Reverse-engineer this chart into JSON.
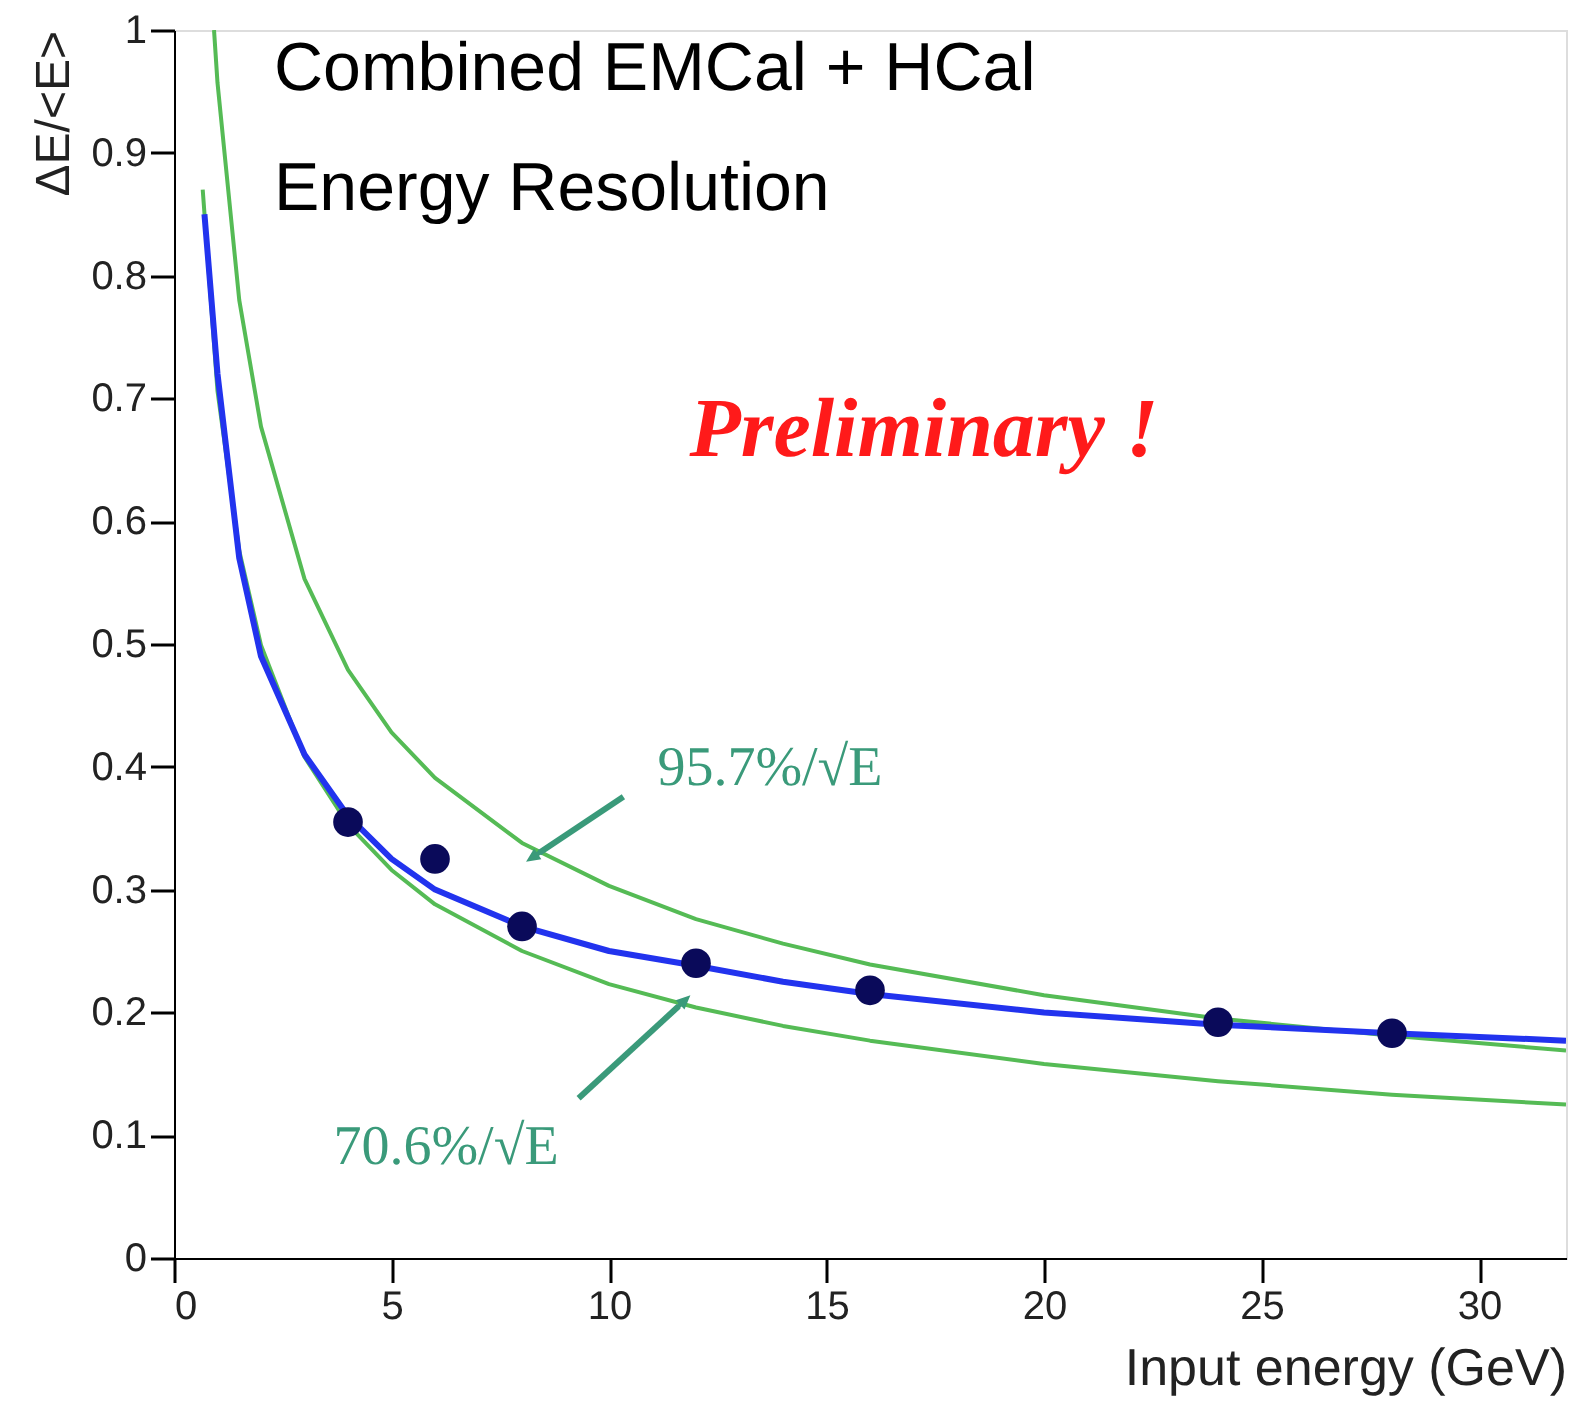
{
  "chart_data": {
    "type": "line",
    "title": "Combined EMCal + HCal\nEnergy Resolution",
    "xlabel": "Input energy (GeV)",
    "ylabel": "ΔE/<E>",
    "xlim": [
      0,
      32
    ],
    "xticks": [
      0,
      5,
      10,
      15,
      20,
      25,
      30
    ],
    "ylim": [
      0,
      1
    ],
    "yticks": [
      0,
      0.1,
      0.2,
      0.3,
      0.4,
      0.5,
      0.6,
      0.7,
      0.8,
      0.9,
      1
    ],
    "grid": false,
    "annotations": [
      "Preliminary !",
      {
        "text": "95.7%/√E",
        "x": 8.4,
        "y": 0.33
      },
      {
        "text": "70.6%/√E",
        "x": 11.6,
        "y": 0.205
      }
    ],
    "series": [
      {
        "color": "#55bb55",
        "x": [
          0.92,
          1,
          1.5,
          2,
          3,
          4,
          5,
          6,
          8,
          10,
          12,
          14,
          16,
          20,
          24,
          28,
          32
        ],
        "values": [
          1.0,
          0.957,
          0.78,
          0.677,
          0.553,
          0.479,
          0.428,
          0.391,
          0.338,
          0.303,
          0.276,
          0.256,
          0.239,
          0.214,
          0.195,
          0.181,
          0.169
        ]
      },
      {
        "color": "#55bb55",
        "x": [
          0.66,
          1,
          1.5,
          2,
          3,
          4,
          5,
          6,
          8,
          10,
          12,
          14,
          16,
          20,
          24,
          28,
          32
        ],
        "values": [
          0.87,
          0.706,
          0.576,
          0.499,
          0.408,
          0.353,
          0.316,
          0.288,
          0.25,
          0.223,
          0.204,
          0.189,
          0.177,
          0.158,
          0.144,
          0.133,
          0.125
        ]
      },
      {
        "color": "#2233ee",
        "x": [
          0.7,
          1,
          1.5,
          2,
          3,
          4,
          5,
          6,
          8,
          10,
          12,
          14,
          16,
          20,
          24,
          28,
          32
        ],
        "values": [
          0.85,
          0.72,
          0.57,
          0.49,
          0.41,
          0.36,
          0.325,
          0.3,
          0.27,
          0.25,
          0.238,
          0.225,
          0.215,
          0.2,
          0.19,
          0.183,
          0.177
        ]
      },
      {
        "type": "scatter",
        "marker": "circle",
        "color": "#0a0a5a",
        "x": [
          4,
          6,
          8,
          12,
          16,
          24,
          28
        ],
        "values": [
          0.355,
          0.325,
          0.27,
          0.24,
          0.218,
          0.192,
          0.183
        ]
      }
    ]
  }
}
